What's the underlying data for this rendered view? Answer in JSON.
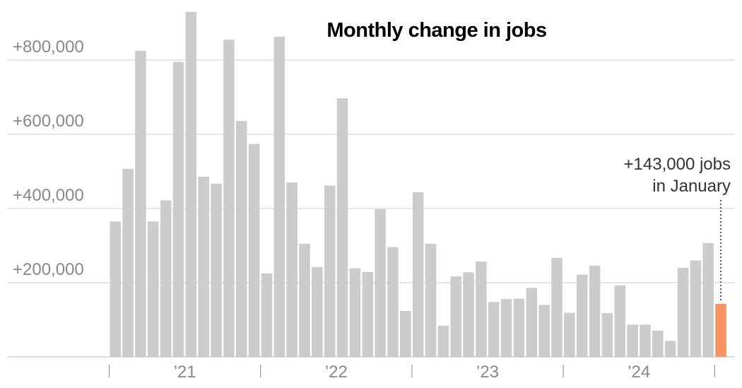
{
  "chart_data": {
    "type": "bar",
    "title": "Monthly change in jobs",
    "ylim": [
      0,
      930000
    ],
    "yticks": [
      200000,
      400000,
      600000,
      800000
    ],
    "ytick_labels": [
      "+200,000",
      "+400,000",
      "+600,000",
      "+800,000"
    ],
    "grid": true,
    "x_year_labels": [
      "’21",
      "’22",
      "’23",
      "’24"
    ],
    "bar_color": "#cccccc",
    "highlight_color": "#f59462",
    "values": [
      365000,
      507000,
      825000,
      365000,
      422000,
      795000,
      930000,
      486000,
      467000,
      855000,
      636000,
      574000,
      225000,
      863000,
      470000,
      305000,
      242000,
      462000,
      697000,
      239000,
      229000,
      398000,
      296000,
      124000,
      444000,
      305000,
      84000,
      217000,
      228000,
      257000,
      148000,
      156000,
      157000,
      186000,
      140000,
      267000,
      119000,
      222000,
      246000,
      118000,
      193000,
      87000,
      87000,
      71000,
      43000,
      240000,
      260000,
      307000,
      143000
    ],
    "highlight_index": 48,
    "annotation": {
      "line1": "+143,000 jobs",
      "line2": "in January"
    }
  }
}
